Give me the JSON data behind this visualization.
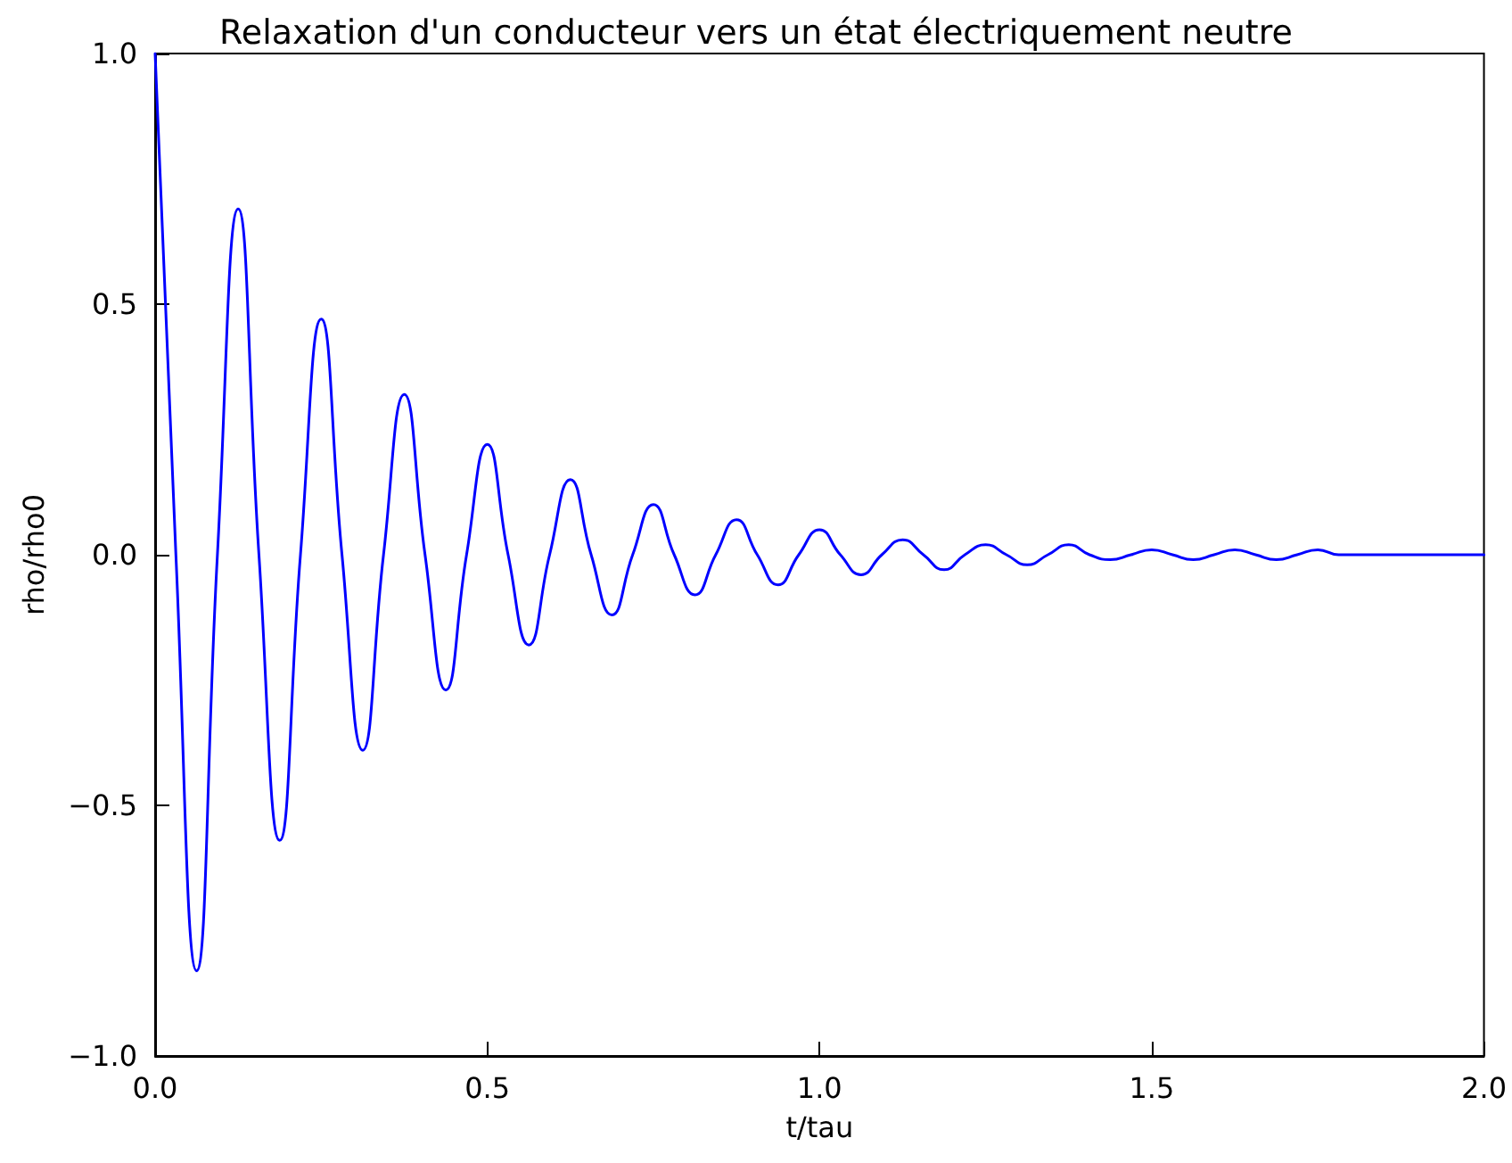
{
  "chart_data": {
    "type": "line",
    "title": "Relaxation d'un conducteur vers un état électriquement neutre",
    "xlabel": "t/tau",
    "ylabel": "rho/rho0",
    "x": [
      0,
      0.03125,
      0.0625,
      0.09375,
      0.125,
      0.15625,
      0.1875,
      0.21875,
      0.25,
      0.28125,
      0.3125,
      0.34375,
      0.375,
      0.40625,
      0.4375,
      0.46875,
      0.5,
      0.53125,
      0.5625,
      0.59375,
      0.625,
      0.65625,
      0.6875,
      0.71875,
      0.75,
      0.78125,
      0.8125,
      0.84375,
      0.875,
      0.90625,
      0.9375,
      0.96875,
      1.0,
      1.03125,
      1.0625,
      1.09375,
      1.125,
      1.15625,
      1.1875,
      1.21875,
      1.25,
      1.28125,
      1.3125,
      1.34375,
      1.375,
      1.40625,
      1.4375,
      1.46875,
      1.5,
      1.53125,
      1.5625,
      1.59375,
      1.625,
      1.65625,
      1.6875,
      1.71875,
      1.75,
      1.78125,
      1.8125,
      1.84375,
      1.875,
      1.90625,
      1.9375,
      1.96875,
      2.0
    ],
    "series": [
      {
        "color": "#0000ff",
        "values": [
          1.0,
          0,
          -0.83,
          0,
          0.69,
          0,
          -0.57,
          0,
          0.47,
          0,
          -0.39,
          0,
          0.32,
          0,
          -0.27,
          0,
          0.22,
          0,
          -0.18,
          0,
          0.15,
          0,
          -0.12,
          0,
          0.1,
          0,
          -0.08,
          0,
          0.07,
          0,
          -0.06,
          0,
          0.05,
          0,
          -0.04,
          0,
          0.03,
          0,
          -0.03,
          0,
          0.02,
          0,
          -0.02,
          0,
          0.02,
          0,
          -0.01,
          0,
          0.01,
          0,
          -0.01,
          0,
          0.01,
          0,
          -0.01,
          0,
          0.01,
          0,
          0,
          0,
          0,
          0,
          0,
          0,
          0
        ]
      }
    ],
    "xlim": [
      0,
      2
    ],
    "xticks": [
      {
        "value": 0,
        "label": "0.0"
      },
      {
        "value": 0.5,
        "label": "0.5"
      },
      {
        "value": 1,
        "label": "1.0"
      },
      {
        "value": 1.5,
        "label": "1.5"
      },
      {
        "value": 2,
        "label": "2.0"
      }
    ],
    "ylim": [
      -1,
      1
    ],
    "yticks": [
      {
        "value": -1,
        "label": "−1.0"
      },
      {
        "value": -0.5,
        "label": "−0.5"
      },
      {
        "value": 0,
        "label": "0.0"
      },
      {
        "value": 0.5,
        "label": "0.5"
      },
      {
        "value": 1,
        "label": "1.0"
      }
    ],
    "grid": false,
    "marker": "none",
    "line_style": "solid"
  }
}
